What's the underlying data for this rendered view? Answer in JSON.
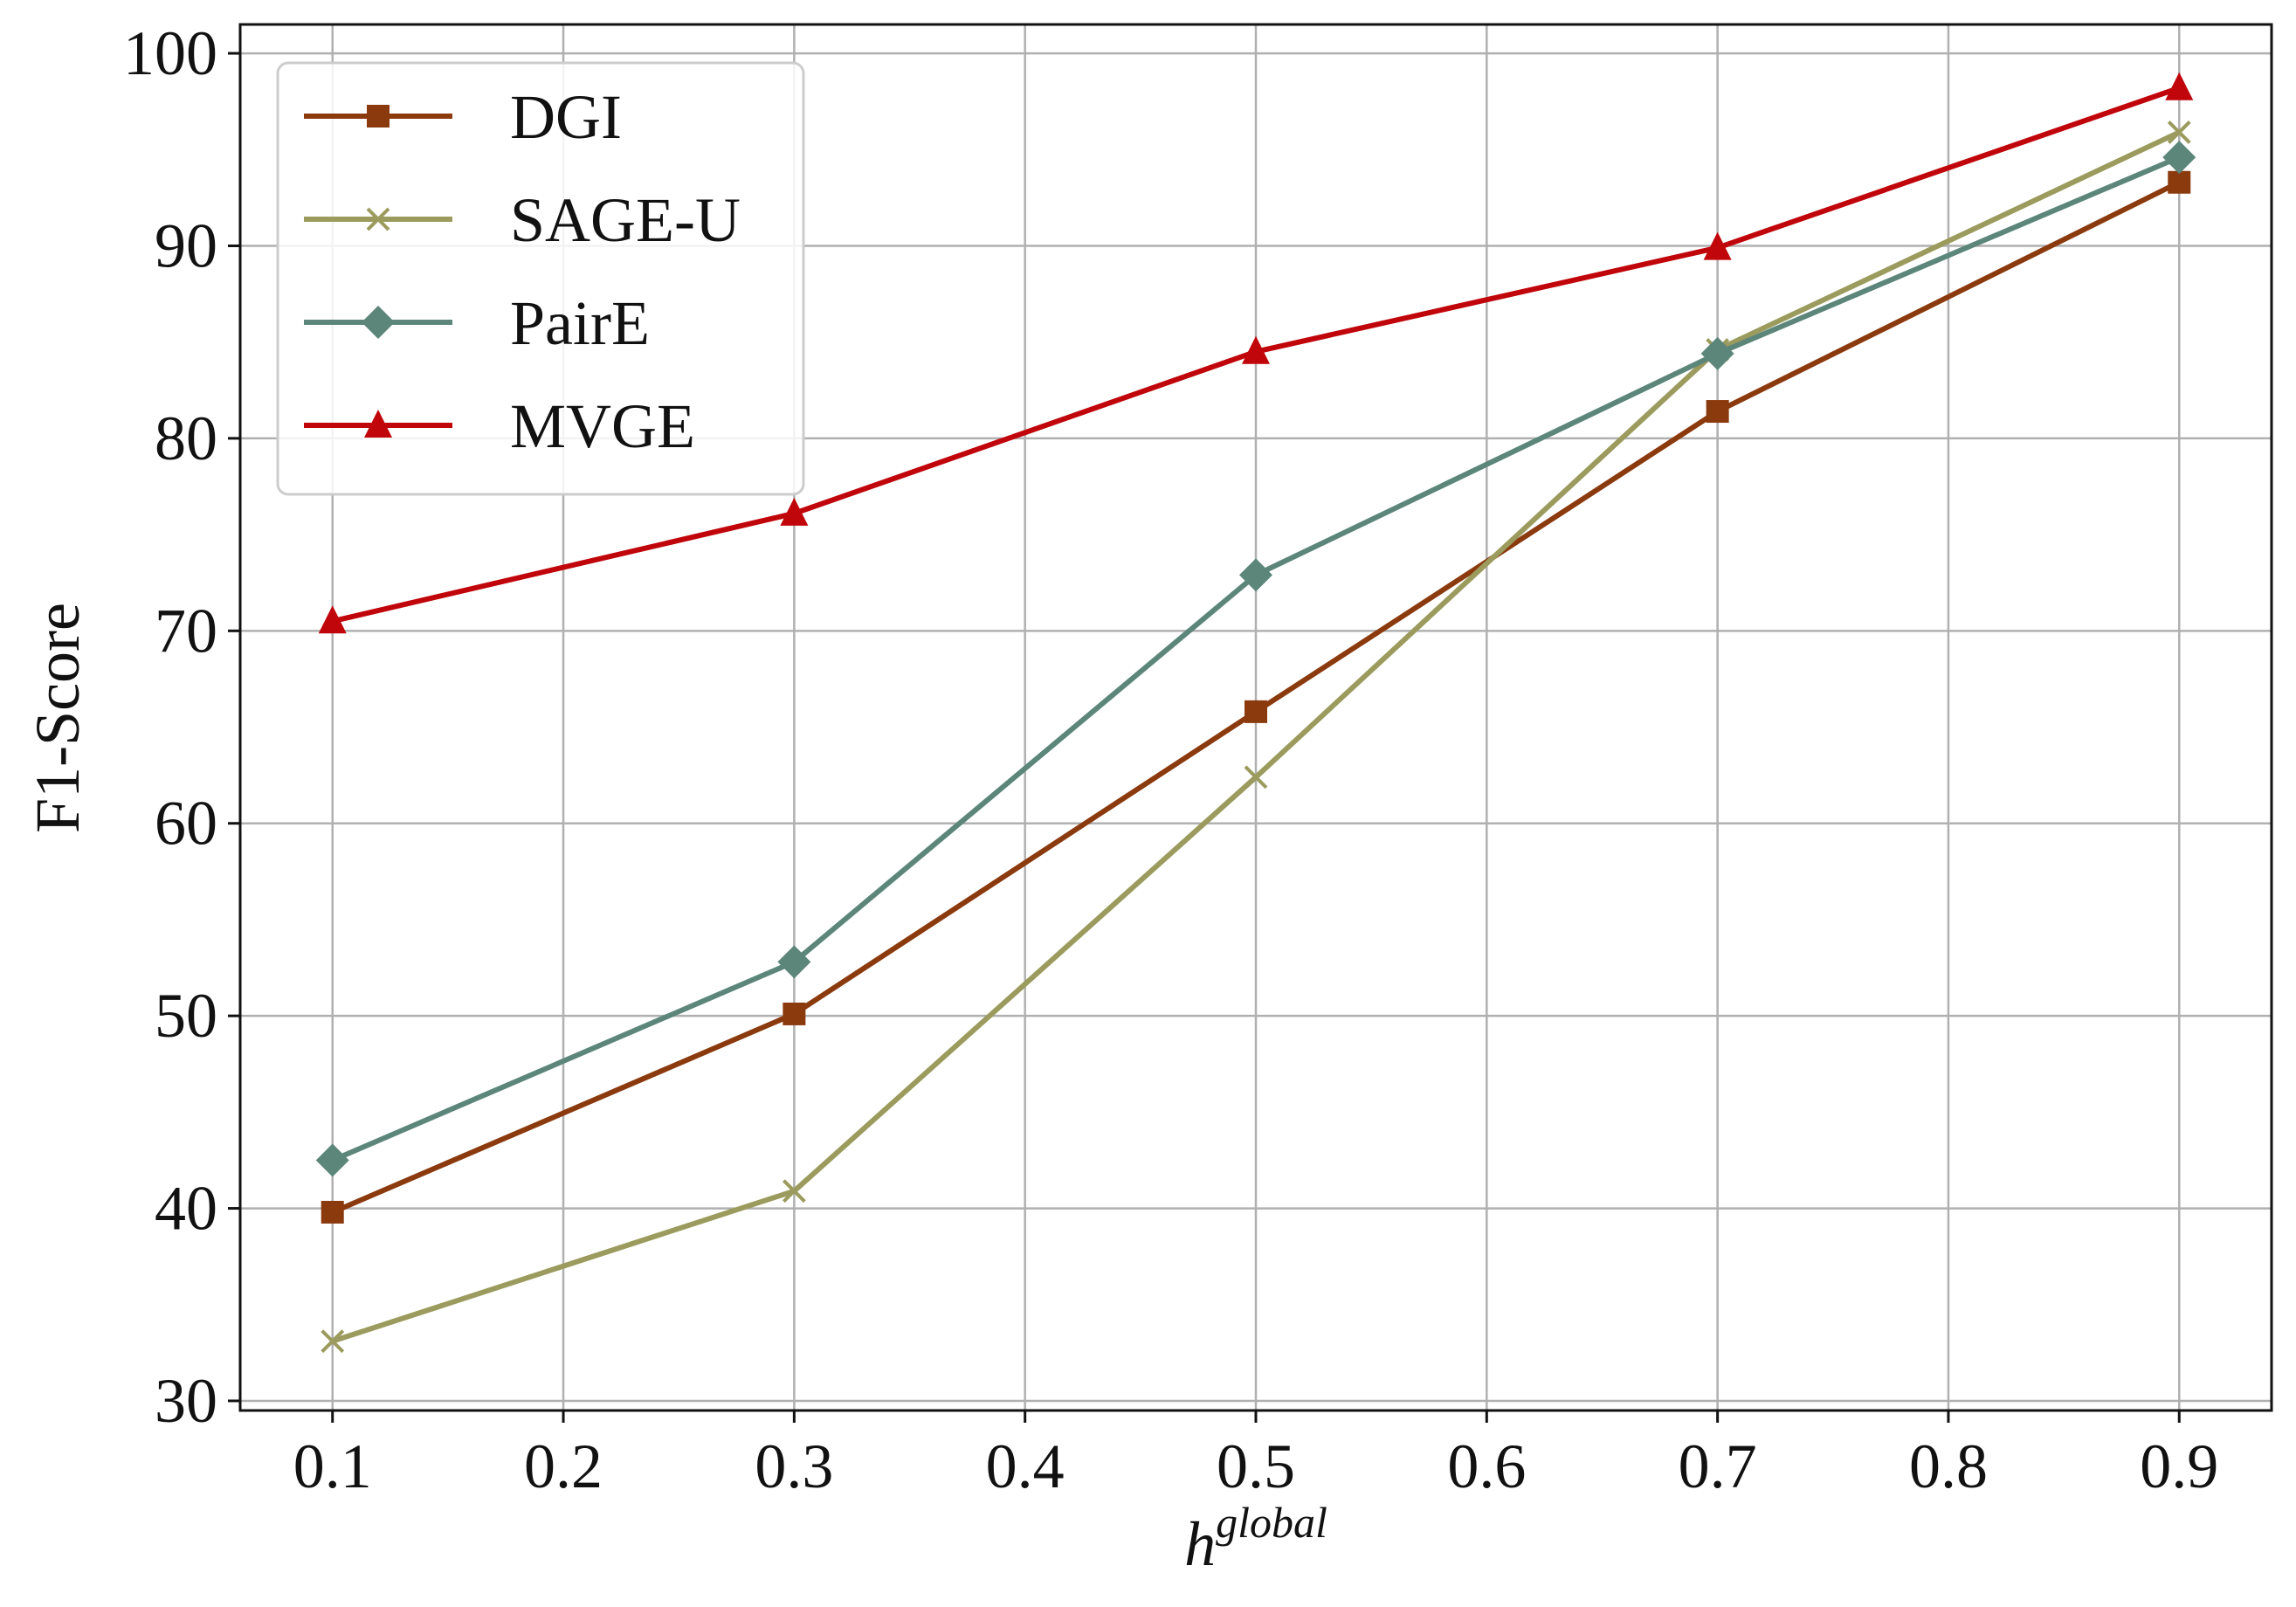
{
  "chart_data": {
    "type": "line",
    "title": "",
    "xlabel_base": "h",
    "xlabel_sup": "global",
    "ylabel": "F1-Score",
    "xlim": [
      0.06,
      0.94
    ],
    "ylim": [
      29.5,
      101.5
    ],
    "xticks": [
      0.1,
      0.2,
      0.3,
      0.4,
      0.5,
      0.6,
      0.7,
      0.8,
      0.9
    ],
    "xtick_labels": [
      "0.1",
      "0.2",
      "0.3",
      "0.4",
      "0.5",
      "0.6",
      "0.7",
      "0.8",
      "0.9"
    ],
    "yticks": [
      30,
      40,
      50,
      60,
      70,
      80,
      90,
      100
    ],
    "ytick_labels": [
      "30",
      "40",
      "50",
      "60",
      "70",
      "80",
      "90",
      "100"
    ],
    "grid": true,
    "legend_position": "top-left",
    "x": [
      0.1,
      0.3,
      0.5,
      0.7,
      0.9
    ],
    "series": [
      {
        "name": "DGI",
        "values": [
          39.8,
          50.1,
          65.8,
          81.4,
          93.3
        ],
        "color": "#8b3a0e",
        "marker": "square"
      },
      {
        "name": "SAGE-U",
        "values": [
          33.1,
          40.9,
          62.4,
          84.6,
          95.9
        ],
        "color": "#9b9b5e",
        "marker": "x"
      },
      {
        "name": "PairE",
        "values": [
          42.5,
          52.8,
          72.9,
          84.4,
          94.6
        ],
        "color": "#5c867a",
        "marker": "diamond"
      },
      {
        "name": "MVGE",
        "values": [
          70.5,
          76.1,
          84.5,
          89.9,
          98.2
        ],
        "color": "#c0050b",
        "marker": "triangle"
      }
    ]
  }
}
